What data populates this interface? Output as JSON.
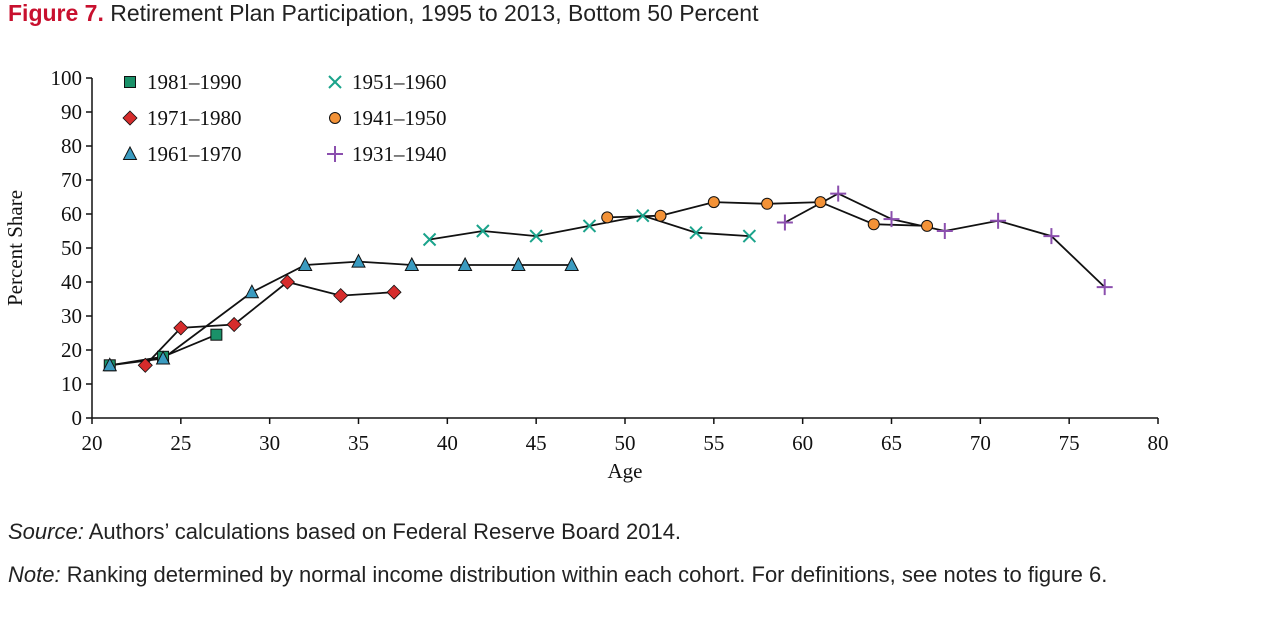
{
  "figure": {
    "label": "Figure 7.",
    "title": "Retirement Plan Participation, 1995 to 2013, Bottom 50 Percent"
  },
  "footnotes": {
    "source_label": "Source:",
    "source_text": " Authors’ calculations based on Federal Reserve Board 2014.",
    "note_label": "Note:",
    "note_text": " Ranking determined by normal income distribution within each cohort. For definitions, see notes to figure 6."
  },
  "colors": {
    "green": "#1a9169",
    "red": "#d62c2c",
    "blue": "#3a9bc0",
    "teal": "#1aa38b",
    "orange": "#f39237",
    "purple": "#8b4fae",
    "line": "#111111"
  },
  "chart_data": {
    "type": "line",
    "xlabel": "Age",
    "ylabel": "Percent Share",
    "xlim": [
      20,
      80
    ],
    "ylim": [
      0,
      100
    ],
    "xticks": [
      20,
      25,
      30,
      35,
      40,
      45,
      50,
      55,
      60,
      65,
      70,
      75,
      80
    ],
    "yticks": [
      0,
      10,
      20,
      30,
      40,
      50,
      60,
      70,
      80,
      90,
      100
    ],
    "legend_position": "top-left",
    "series": [
      {
        "name": "1981–1990",
        "marker": "square",
        "color": "green",
        "x": [
          21,
          24,
          27
        ],
        "y": [
          15.5,
          18,
          24.5
        ]
      },
      {
        "name": "1971–1980",
        "marker": "diamond",
        "color": "red",
        "x": [
          23,
          25,
          28,
          31,
          34,
          37
        ],
        "y": [
          15.5,
          26.5,
          27.5,
          40,
          36,
          37
        ]
      },
      {
        "name": "1961–1970",
        "marker": "triangle",
        "color": "blue",
        "x": [
          21,
          24,
          29,
          32,
          35,
          38,
          41,
          44,
          47
        ],
        "y": [
          15.5,
          17.5,
          37,
          45,
          46,
          45,
          45,
          45,
          45
        ]
      },
      {
        "name": "1951–1960",
        "marker": "x",
        "color": "teal",
        "x": [
          39,
          42,
          45,
          48,
          51,
          54,
          57
        ],
        "y": [
          52.5,
          55,
          53.5,
          56.5,
          59.5,
          54.5,
          53.5
        ]
      },
      {
        "name": "1941–1950",
        "marker": "circle",
        "color": "orange",
        "x": [
          49,
          52,
          55,
          58,
          61,
          64,
          67
        ],
        "y": [
          59,
          59.5,
          63.5,
          63,
          63.5,
          57,
          56.5
        ]
      },
      {
        "name": "1931–1940",
        "marker": "plus",
        "color": "purple",
        "x": [
          59,
          62,
          65,
          68,
          71,
          74,
          77
        ],
        "y": [
          57.5,
          66,
          58.5,
          55,
          58,
          53.5,
          38.5
        ]
      }
    ]
  }
}
